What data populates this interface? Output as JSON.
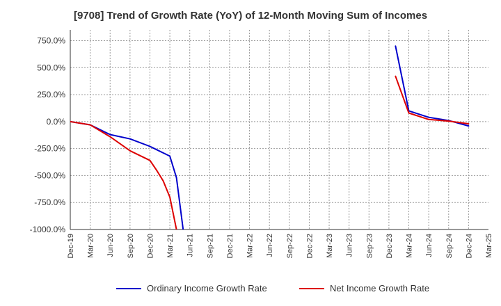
{
  "chart_data": {
    "type": "line",
    "title": "[9708]  Trend of Growth Rate (YoY) of 12-Month Moving Sum of Incomes",
    "xlabel": "",
    "ylabel": "",
    "ylim": [
      -1000,
      850
    ],
    "x_ticks": [
      "Dec-19",
      "Mar-20",
      "Jun-20",
      "Sep-20",
      "Dec-20",
      "Mar-21",
      "Jun-21",
      "Sep-21",
      "Dec-21",
      "Mar-22",
      "Jun-22",
      "Sep-22",
      "Dec-22",
      "Mar-23",
      "Jun-23",
      "Sep-23",
      "Dec-23",
      "Mar-24",
      "Jun-24",
      "Sep-24",
      "Dec-24",
      "Mar-25"
    ],
    "y_ticks": [
      750,
      500,
      250,
      0,
      -250,
      -500,
      -750,
      -1000
    ],
    "y_tick_labels": [
      "750.0%",
      "500.0%",
      "250.0%",
      "0.0%",
      "-250.0%",
      "-500.0%",
      "-750.0%",
      "-1000.0%"
    ],
    "grid": true,
    "legend_position": "bottom",
    "series": [
      {
        "name": "Ordinary Income Growth Rate",
        "color": "#0000cc",
        "points": [
          [
            "Dec-19",
            0
          ],
          [
            "Mar-20",
            -30
          ],
          [
            "Jun-20",
            -120
          ],
          [
            "Sep-20",
            -160
          ],
          [
            "Dec-20",
            -230
          ],
          [
            "Jan-21",
            -260
          ],
          [
            "Feb-21",
            -290
          ],
          [
            "Mar-21",
            -320
          ],
          [
            "Apr-21",
            -520
          ],
          [
            "May-21",
            -1000
          ],
          [
            "Jan-24",
            700
          ],
          [
            "Mar-24",
            100
          ],
          [
            "Jun-24",
            40
          ],
          [
            "Sep-24",
            10
          ],
          [
            "Dec-24",
            -40
          ]
        ],
        "breaks_after": [
          "May-21"
        ]
      },
      {
        "name": "Net Income Growth Rate",
        "color": "#dd0000",
        "points": [
          [
            "Dec-19",
            0
          ],
          [
            "Mar-20",
            -30
          ],
          [
            "Jun-20",
            -140
          ],
          [
            "Sep-20",
            -270
          ],
          [
            "Dec-20",
            -360
          ],
          [
            "Jan-21",
            -450
          ],
          [
            "Feb-21",
            -550
          ],
          [
            "Mar-21",
            -700
          ],
          [
            "Apr-21",
            -1000
          ],
          [
            "Jan-24",
            420
          ],
          [
            "Mar-24",
            80
          ],
          [
            "Jun-24",
            20
          ],
          [
            "Sep-24",
            5
          ],
          [
            "Dec-24",
            -20
          ]
        ],
        "breaks_after": [
          "Apr-21"
        ]
      }
    ]
  }
}
